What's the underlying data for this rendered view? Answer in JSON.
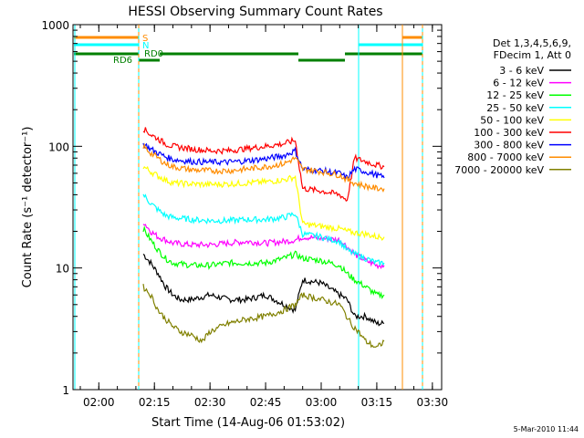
{
  "chart_data": {
    "type": "line",
    "title": "HESSI Observing Summary Count Rates",
    "xlabel": "Start Time (14-Aug-06 01:53:02)",
    "ylabel": "Count Rate (s⁻¹ detector⁻¹)",
    "x_unit": "minutes (clock time)",
    "xlim": [
      "01:53:02",
      "03:32:30"
    ],
    "x_ticks": [
      "02:00",
      "02:15",
      "02:30",
      "02:45",
      "03:00",
      "03:15",
      "03:30"
    ],
    "y_scale": "log",
    "ylim": [
      1,
      1000
    ],
    "y_ticks": [
      "1",
      "10",
      "100",
      "1000"
    ],
    "grid": false,
    "legend_position": "right",
    "legend_header": [
      "Det 1,3,4,5,6,9,",
      "FDecim 1, Att 0"
    ],
    "series": [
      {
        "name": "3 - 6 keV",
        "color": "#000000",
        "x": [
          "02:12",
          "02:14",
          "02:16",
          "02:18",
          "02:20",
          "02:22",
          "02:25",
          "02:30",
          "02:35",
          "02:40",
          "02:45",
          "02:50",
          "02:53",
          "02:55",
          "03:00",
          "03:05",
          "03:07",
          "03:09",
          "03:12",
          "03:15",
          "03:17"
        ],
        "y": [
          13,
          11,
          9,
          7,
          6,
          5.5,
          5.5,
          6,
          5.5,
          5.5,
          6,
          5,
          4.5,
          8,
          7.5,
          6,
          5.5,
          4,
          4,
          3.5,
          3.5
        ]
      },
      {
        "name": "6 - 12 keV",
        "color": "#ff00ff",
        "x": [
          "02:12",
          "02:14",
          "02:16",
          "02:18",
          "02:20",
          "02:25",
          "02:30",
          "02:35",
          "02:40",
          "02:45",
          "02:50",
          "02:53",
          "02:55",
          "03:00",
          "03:05",
          "03:07",
          "03:09",
          "03:12",
          "03:15",
          "03:17"
        ],
        "y": [
          24,
          20,
          18,
          17,
          16,
          15.5,
          15.5,
          16,
          16.5,
          16,
          16.5,
          17,
          18,
          17.5,
          17,
          15,
          13,
          11.5,
          10.5,
          10.5
        ]
      },
      {
        "name": "12 - 25 keV",
        "color": "#00ff00",
        "x": [
          "02:12",
          "02:14",
          "02:16",
          "02:18",
          "02:20",
          "02:25",
          "02:30",
          "02:35",
          "02:40",
          "02:45",
          "02:50",
          "02:53",
          "02:55",
          "03:00",
          "03:05",
          "03:07",
          "03:09",
          "03:12",
          "03:15",
          "03:17"
        ],
        "y": [
          21,
          17,
          14,
          12,
          11,
          10.5,
          10.5,
          11,
          11,
          11,
          12,
          13,
          12,
          11.5,
          10.5,
          9,
          8,
          7,
          6,
          6
        ]
      },
      {
        "name": "25 - 50 keV",
        "color": "#00ffff",
        "x": [
          "02:12",
          "02:14",
          "02:16",
          "02:18",
          "02:20",
          "02:25",
          "02:30",
          "02:35",
          "02:40",
          "02:45",
          "02:50",
          "02:53",
          "02:55",
          "03:00",
          "03:05",
          "03:07",
          "03:09",
          "03:12",
          "03:15",
          "03:17"
        ],
        "y": [
          40,
          34,
          30,
          27,
          26,
          25,
          24.5,
          24.5,
          25,
          25,
          26,
          28,
          19,
          18,
          16.5,
          14,
          13,
          12,
          11,
          11
        ]
      },
      {
        "name": "50 - 100 keV",
        "color": "#ffff00",
        "x": [
          "02:12",
          "02:14",
          "02:16",
          "02:18",
          "02:20",
          "02:25",
          "02:30",
          "02:35",
          "02:40",
          "02:45",
          "02:50",
          "02:53",
          "02:55",
          "03:00",
          "03:05",
          "03:07",
          "03:09",
          "03:12",
          "03:15",
          "03:17"
        ],
        "y": [
          68,
          62,
          57,
          53,
          50,
          49,
          48.5,
          49,
          50,
          51,
          53,
          56,
          23,
          22,
          21,
          20,
          19.5,
          19,
          18,
          18
        ]
      },
      {
        "name": "100 - 300 keV",
        "color": "#ff0000",
        "x": [
          "02:12",
          "02:14",
          "02:16",
          "02:18",
          "02:20",
          "02:25",
          "02:30",
          "02:35",
          "02:40",
          "02:45",
          "02:50",
          "02:53",
          "02:55",
          "03:00",
          "03:05",
          "03:07",
          "03:09",
          "03:12",
          "03:15",
          "03:17"
        ],
        "y": [
          140,
          125,
          115,
          105,
          100,
          95,
          92,
          92,
          96,
          100,
          105,
          112,
          45,
          43,
          40,
          36,
          80,
          75,
          70,
          68
        ]
      },
      {
        "name": "300 - 800 keV",
        "color": "#0000ff",
        "x": [
          "02:12",
          "02:14",
          "02:16",
          "02:18",
          "02:20",
          "02:25",
          "02:30",
          "02:35",
          "02:40",
          "02:45",
          "02:50",
          "02:53",
          "02:55",
          "03:00",
          "03:05",
          "03:07",
          "03:09",
          "03:12",
          "03:15",
          "03:17"
        ],
        "y": [
          105,
          95,
          88,
          82,
          78,
          75,
          74,
          74,
          76,
          79,
          84,
          92,
          65,
          63,
          60,
          55,
          65,
          62,
          58,
          55
        ]
      },
      {
        "name": "800 - 7000 keV",
        "color": "#ff8c00",
        "x": [
          "02:12",
          "02:14",
          "02:16",
          "02:18",
          "02:20",
          "02:25",
          "02:30",
          "02:35",
          "02:40",
          "02:45",
          "02:50",
          "02:53",
          "02:55",
          "03:00",
          "03:05",
          "03:07",
          "03:09",
          "03:12",
          "03:15",
          "03:17"
        ],
        "y": [
          100,
          88,
          80,
          72,
          68,
          64,
          63,
          63,
          65,
          68,
          72,
          80,
          65,
          62,
          58,
          53,
          50,
          47,
          45,
          45
        ]
      },
      {
        "name": "7000 - 20000 keV",
        "color": "#808000",
        "x": [
          "02:12",
          "02:14",
          "02:16",
          "02:18",
          "02:20",
          "02:22",
          "02:25",
          "02:28",
          "02:30",
          "02:35",
          "02:40",
          "02:45",
          "02:50",
          "02:53",
          "02:55",
          "03:00",
          "03:05",
          "03:08",
          "03:10",
          "03:12",
          "03:15",
          "03:17"
        ],
        "y": [
          7,
          6,
          4.5,
          3.8,
          3.3,
          3,
          2.8,
          2.5,
          3,
          3.5,
          3.8,
          4,
          4.5,
          5,
          6,
          5.5,
          5,
          3.5,
          3,
          2.5,
          2.2,
          2.5
        ]
      }
    ],
    "flag_labels": [
      "S",
      "N",
      "RD0",
      "RD6"
    ],
    "footer": "5-Mar-2010 11:44"
  }
}
